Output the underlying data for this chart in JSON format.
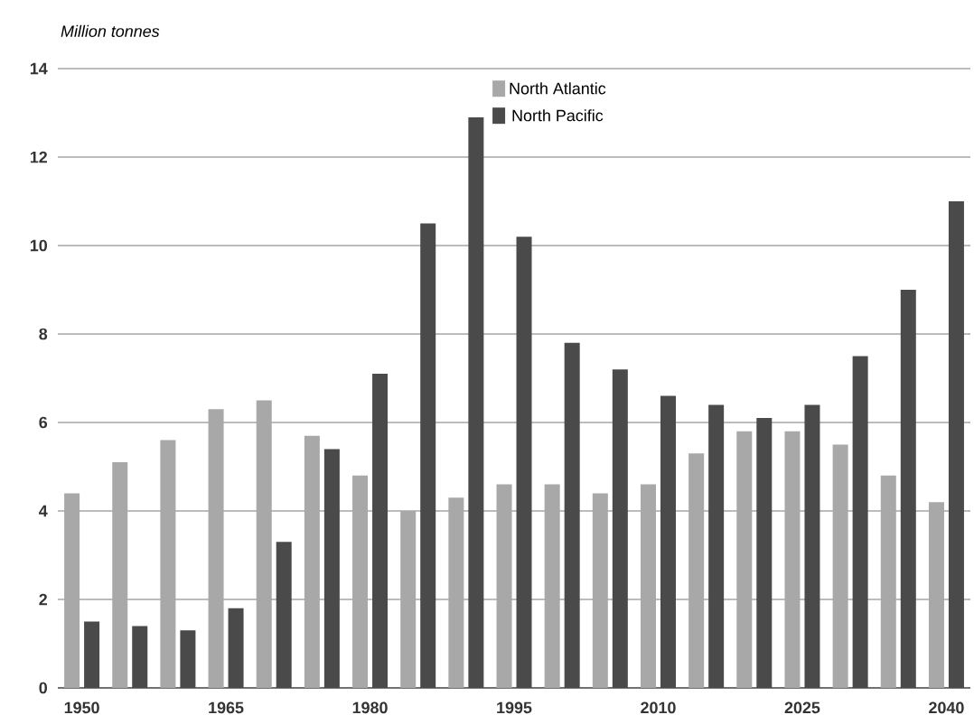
{
  "chart_data": {
    "type": "bar",
    "ylabel": "Million tonnes",
    "categories": [
      "1950",
      null,
      null,
      "1965",
      null,
      null,
      "1980",
      null,
      null,
      "1995",
      null,
      null,
      "2010",
      null,
      null,
      "2025",
      null,
      null,
      "2040"
    ],
    "series": [
      {
        "name": "North Atlantic",
        "color": "#a8a8a8",
        "values": [
          4.4,
          5.1,
          5.6,
          6.3,
          6.5,
          5.7,
          4.8,
          4.0,
          4.3,
          4.6,
          4.6,
          4.4,
          4.6,
          5.3,
          5.8,
          5.8,
          5.5,
          4.8,
          4.2
        ]
      },
      {
        "name": "North Pacific",
        "color": "#4a4a4a",
        "values": [
          1.5,
          1.4,
          1.3,
          1.8,
          3.3,
          5.4,
          7.1,
          10.5,
          12.9,
          10.2,
          7.8,
          7.2,
          6.6,
          6.4,
          6.1,
          6.4,
          7.5,
          9.0,
          11.0
        ]
      }
    ],
    "ylim": [
      0,
      14
    ],
    "yticks": [
      0,
      2,
      4,
      6,
      8,
      10,
      12,
      14
    ],
    "grid": "y",
    "legend": "top"
  }
}
